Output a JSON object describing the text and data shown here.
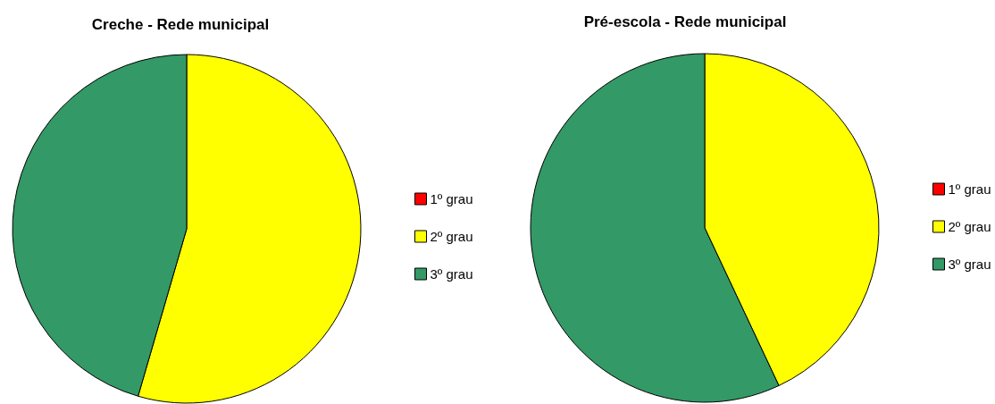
{
  "chart_data": [
    {
      "type": "pie",
      "title": "Creche - Rede municipal",
      "categories": [
        "1º grau",
        "2º grau",
        "3º grau"
      ],
      "values": [
        0,
        54.5,
        45.5
      ],
      "colors": [
        "#ff0000",
        "#ffff00",
        "#339966"
      ],
      "legend": "right"
    },
    {
      "type": "pie",
      "title": "Pré-escola - Rede municipal",
      "categories": [
        "1º grau",
        "2º grau",
        "3º grau"
      ],
      "values": [
        0,
        43,
        57
      ],
      "colors": [
        "#ff0000",
        "#ffff00",
        "#339966"
      ],
      "legend": "right"
    }
  ]
}
